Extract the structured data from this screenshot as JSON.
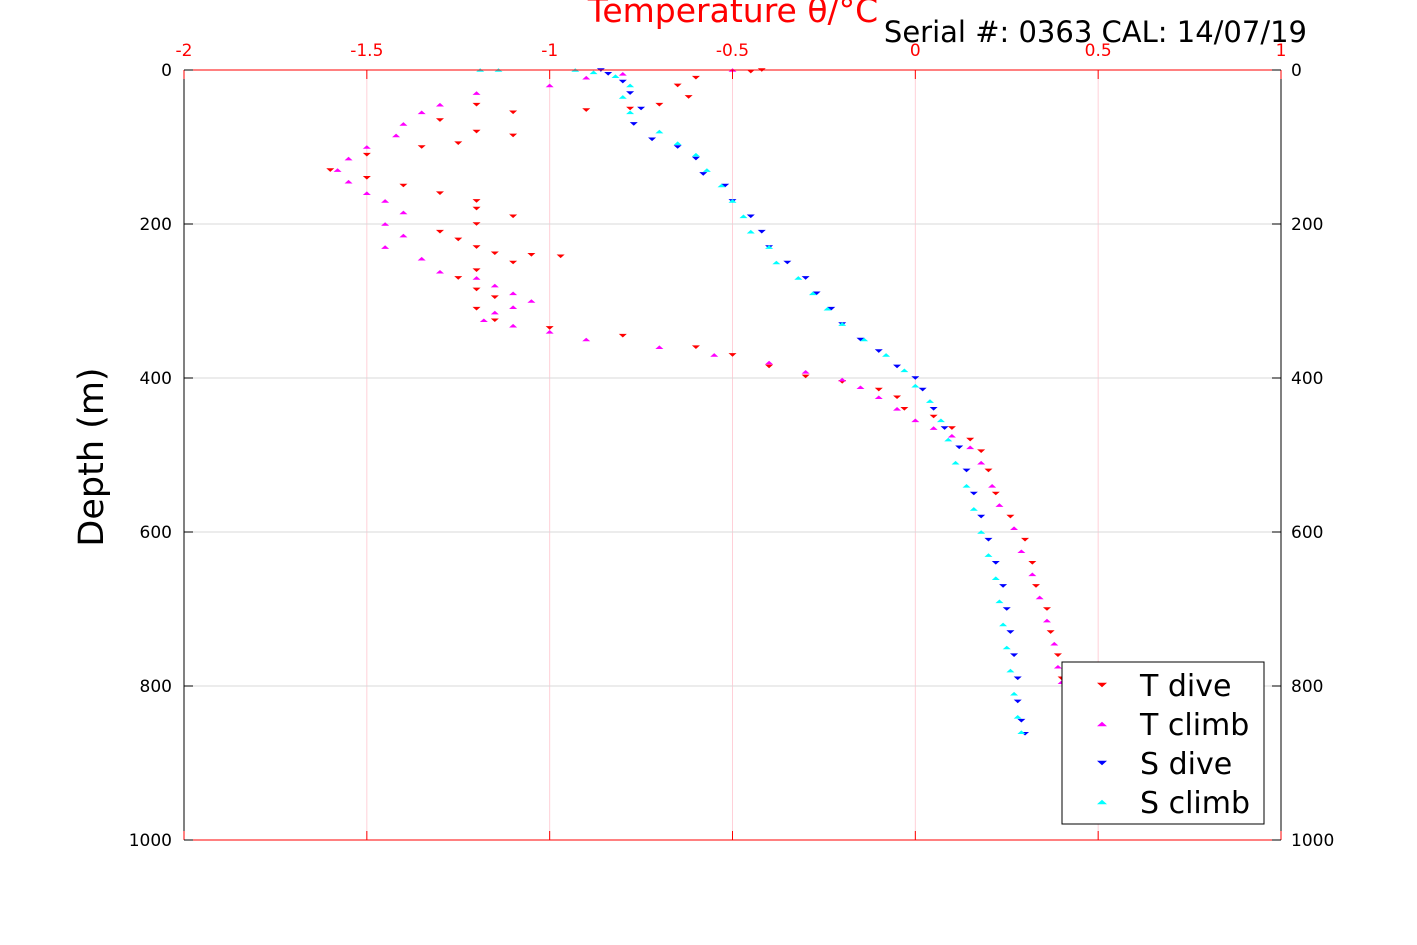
{
  "chart_data": {
    "type": "scatter",
    "title": "Serial #: 0363  CAL: 14/07/19",
    "xlabel": "Temperature θ/°C",
    "ylabel": "Depth (m)",
    "xlim": [
      -2,
      1
    ],
    "ylim": [
      0,
      1000
    ],
    "y_reversed": true,
    "grid": true,
    "legend_position": "bottom-right",
    "x_ticks": [
      "-2",
      "-1.5",
      "-1",
      "-0.5",
      "0",
      "0.5",
      "1"
    ],
    "y_ticks": [
      "0",
      "200",
      "400",
      "600",
      "800",
      "1000"
    ],
    "colors": {
      "top_axis": "#ff0000",
      "grid_x": "#ffd0d8",
      "grid_y": "#d9d9d9"
    },
    "series": [
      {
        "name": "T dive",
        "color": "#ff0000",
        "marker": "triangle-down",
        "points": [
          [
            -0.42,
            0
          ],
          [
            -0.45,
            2
          ],
          [
            -0.6,
            10
          ],
          [
            -0.65,
            20
          ],
          [
            -0.62,
            35
          ],
          [
            -0.7,
            45
          ],
          [
            -0.78,
            50
          ],
          [
            -0.9,
            52
          ],
          [
            -1.2,
            45
          ],
          [
            -1.1,
            55
          ],
          [
            -1.3,
            65
          ],
          [
            -1.2,
            80
          ],
          [
            -1.1,
            85
          ],
          [
            -1.25,
            95
          ],
          [
            -1.35,
            100
          ],
          [
            -1.5,
            110
          ],
          [
            -1.6,
            130
          ],
          [
            -1.5,
            140
          ],
          [
            -1.4,
            150
          ],
          [
            -1.3,
            160
          ],
          [
            -1.2,
            170
          ],
          [
            -1.2,
            180
          ],
          [
            -1.1,
            190
          ],
          [
            -1.2,
            200
          ],
          [
            -1.3,
            210
          ],
          [
            -1.25,
            220
          ],
          [
            -1.2,
            230
          ],
          [
            -1.15,
            238
          ],
          [
            -1.05,
            240
          ],
          [
            -0.97,
            242
          ],
          [
            -1.1,
            250
          ],
          [
            -1.2,
            260
          ],
          [
            -1.25,
            270
          ],
          [
            -1.2,
            285
          ],
          [
            -1.15,
            295
          ],
          [
            -1.2,
            310
          ],
          [
            -1.15,
            325
          ],
          [
            -1.0,
            335
          ],
          [
            -0.8,
            345
          ],
          [
            -0.6,
            360
          ],
          [
            -0.5,
            370
          ],
          [
            -0.4,
            385
          ],
          [
            -0.3,
            398
          ],
          [
            -0.2,
            405
          ],
          [
            -0.1,
            415
          ],
          [
            -0.05,
            425
          ],
          [
            -0.03,
            440
          ],
          [
            0.05,
            450
          ],
          [
            0.1,
            465
          ],
          [
            0.15,
            480
          ],
          [
            0.18,
            495
          ],
          [
            0.2,
            520
          ],
          [
            0.22,
            550
          ],
          [
            0.26,
            580
          ],
          [
            0.3,
            610
          ],
          [
            0.32,
            640
          ],
          [
            0.33,
            670
          ],
          [
            0.36,
            700
          ],
          [
            0.37,
            730
          ],
          [
            0.39,
            760
          ],
          [
            0.4,
            790
          ]
        ]
      },
      {
        "name": "T climb",
        "color": "#ff00ff",
        "marker": "triangle-up",
        "points": [
          [
            -0.5,
            0
          ],
          [
            -0.8,
            5
          ],
          [
            -0.9,
            10
          ],
          [
            -1.0,
            20
          ],
          [
            -1.2,
            30
          ],
          [
            -1.3,
            45
          ],
          [
            -1.35,
            55
          ],
          [
            -1.4,
            70
          ],
          [
            -1.42,
            85
          ],
          [
            -1.5,
            100
          ],
          [
            -1.55,
            115
          ],
          [
            -1.58,
            130
          ],
          [
            -1.55,
            145
          ],
          [
            -1.5,
            160
          ],
          [
            -1.45,
            170
          ],
          [
            -1.4,
            185
          ],
          [
            -1.45,
            200
          ],
          [
            -1.4,
            215
          ],
          [
            -1.45,
            230
          ],
          [
            -1.35,
            245
          ],
          [
            -1.3,
            262
          ],
          [
            -1.2,
            270
          ],
          [
            -1.15,
            280
          ],
          [
            -1.1,
            290
          ],
          [
            -1.05,
            300
          ],
          [
            -1.1,
            308
          ],
          [
            -1.15,
            315
          ],
          [
            -1.18,
            325
          ],
          [
            -1.1,
            332
          ],
          [
            -1.0,
            340
          ],
          [
            -0.9,
            350
          ],
          [
            -0.7,
            360
          ],
          [
            -0.55,
            370
          ],
          [
            -0.4,
            380
          ],
          [
            -0.3,
            392
          ],
          [
            -0.2,
            402
          ],
          [
            -0.15,
            412
          ],
          [
            -0.1,
            425
          ],
          [
            -0.05,
            440
          ],
          [
            0.0,
            455
          ],
          [
            0.05,
            465
          ],
          [
            0.1,
            475
          ],
          [
            0.15,
            490
          ],
          [
            0.18,
            510
          ],
          [
            0.21,
            540
          ],
          [
            0.23,
            565
          ],
          [
            0.27,
            595
          ],
          [
            0.29,
            625
          ],
          [
            0.32,
            655
          ],
          [
            0.34,
            685
          ],
          [
            0.36,
            715
          ],
          [
            0.38,
            745
          ],
          [
            0.39,
            775
          ],
          [
            0.4,
            795
          ]
        ]
      },
      {
        "name": "S dive",
        "color": "#0000ff",
        "marker": "triangle-down",
        "points": [
          [
            -0.86,
            0
          ],
          [
            -0.84,
            5
          ],
          [
            -0.8,
            15
          ],
          [
            -0.78,
            30
          ],
          [
            -0.75,
            50
          ],
          [
            -0.77,
            70
          ],
          [
            -0.72,
            90
          ],
          [
            -0.65,
            100
          ],
          [
            -0.6,
            115
          ],
          [
            -0.58,
            135
          ],
          [
            -0.52,
            150
          ],
          [
            -0.5,
            170
          ],
          [
            -0.45,
            190
          ],
          [
            -0.42,
            210
          ],
          [
            -0.4,
            230
          ],
          [
            -0.35,
            250
          ],
          [
            -0.3,
            270
          ],
          [
            -0.27,
            290
          ],
          [
            -0.23,
            310
          ],
          [
            -0.2,
            330
          ],
          [
            -0.15,
            350
          ],
          [
            -0.1,
            365
          ],
          [
            -0.05,
            385
          ],
          [
            0.0,
            400
          ],
          [
            0.02,
            415
          ],
          [
            0.05,
            440
          ],
          [
            0.08,
            465
          ],
          [
            0.12,
            490
          ],
          [
            0.14,
            520
          ],
          [
            0.16,
            550
          ],
          [
            0.18,
            580
          ],
          [
            0.2,
            610
          ],
          [
            0.22,
            640
          ],
          [
            0.24,
            670
          ],
          [
            0.25,
            700
          ],
          [
            0.26,
            730
          ],
          [
            0.27,
            760
          ],
          [
            0.28,
            790
          ],
          [
            0.28,
            820
          ],
          [
            0.29,
            845
          ],
          [
            0.3,
            862
          ]
        ]
      },
      {
        "name": "S climb",
        "color": "#00ffff",
        "marker": "triangle-up",
        "points": [
          [
            -1.19,
            0
          ],
          [
            -1.14,
            0
          ],
          [
            -0.93,
            0
          ],
          [
            -0.88,
            3
          ],
          [
            -0.82,
            8
          ],
          [
            -0.78,
            20
          ],
          [
            -0.8,
            35
          ],
          [
            -0.78,
            55
          ],
          [
            -0.7,
            80
          ],
          [
            -0.65,
            95
          ],
          [
            -0.6,
            110
          ],
          [
            -0.57,
            130
          ],
          [
            -0.53,
            150
          ],
          [
            -0.5,
            170
          ],
          [
            -0.47,
            190
          ],
          [
            -0.45,
            210
          ],
          [
            -0.4,
            230
          ],
          [
            -0.38,
            250
          ],
          [
            -0.32,
            270
          ],
          [
            -0.28,
            290
          ],
          [
            -0.24,
            310
          ],
          [
            -0.2,
            330
          ],
          [
            -0.14,
            350
          ],
          [
            -0.08,
            370
          ],
          [
            -0.03,
            390
          ],
          [
            0.0,
            410
          ],
          [
            0.04,
            430
          ],
          [
            0.07,
            455
          ],
          [
            0.09,
            480
          ],
          [
            0.11,
            510
          ],
          [
            0.14,
            540
          ],
          [
            0.16,
            570
          ],
          [
            0.18,
            600
          ],
          [
            0.2,
            630
          ],
          [
            0.22,
            660
          ],
          [
            0.23,
            690
          ],
          [
            0.24,
            720
          ],
          [
            0.25,
            750
          ],
          [
            0.26,
            780
          ],
          [
            0.27,
            810
          ],
          [
            0.28,
            840
          ],
          [
            0.29,
            860
          ]
        ]
      }
    ]
  }
}
